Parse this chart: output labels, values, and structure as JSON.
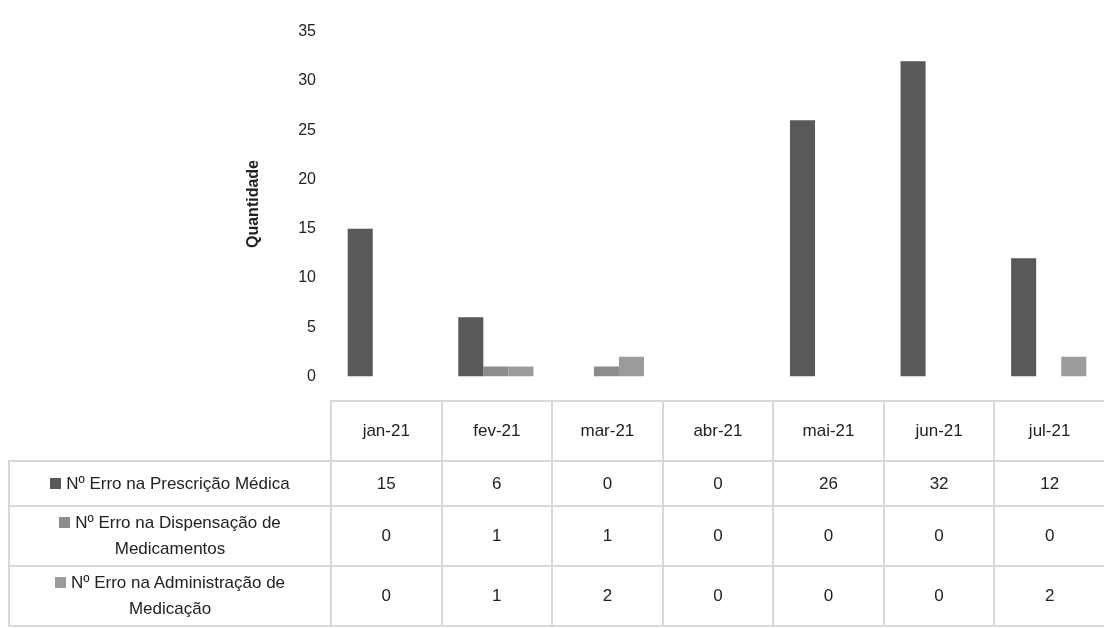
{
  "chart_data": {
    "type": "bar",
    "ylabel": "Quantidade",
    "categories": [
      "jan-21",
      "fev-21",
      "mar-21",
      "abr-21",
      "mai-21",
      "jun-21",
      "jul-21"
    ],
    "series": [
      {
        "name": "Nº Erro na Prescrição Médica",
        "color": "#595959",
        "values": [
          15,
          6,
          0,
          0,
          26,
          32,
          12
        ]
      },
      {
        "name": "Nº Erro na Dispensação de Medicamentos",
        "color": "#8c8c8c",
        "values": [
          0,
          1,
          1,
          0,
          0,
          0,
          0
        ]
      },
      {
        "name": "Nº Erro na Administração de Medicação",
        "color": "#9b9b9b",
        "values": [
          0,
          1,
          2,
          0,
          0,
          0,
          2
        ]
      }
    ],
    "ylim": [
      0,
      35
    ],
    "yticks": [
      0,
      5,
      10,
      15,
      20,
      25,
      30,
      35
    ],
    "grid": false,
    "legend": "bottom",
    "data_labels": true
  }
}
